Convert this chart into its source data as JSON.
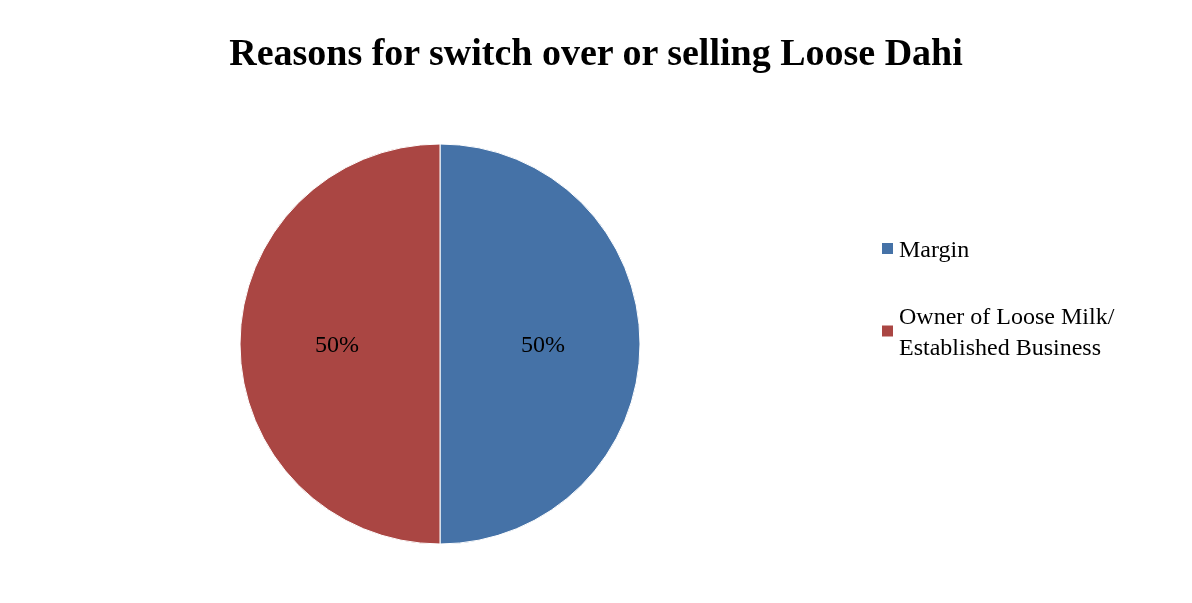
{
  "chart_data": {
    "type": "pie",
    "title": "Reasons for switch over or selling Loose Dahi",
    "categories": [
      "Margin",
      "Owner of Loose Milk/ Established Business"
    ],
    "values": [
      50,
      50
    ],
    "colors": [
      "#4572a7",
      "#aa4643"
    ],
    "value_labels": [
      "50%",
      "50%"
    ],
    "legend": "right"
  }
}
